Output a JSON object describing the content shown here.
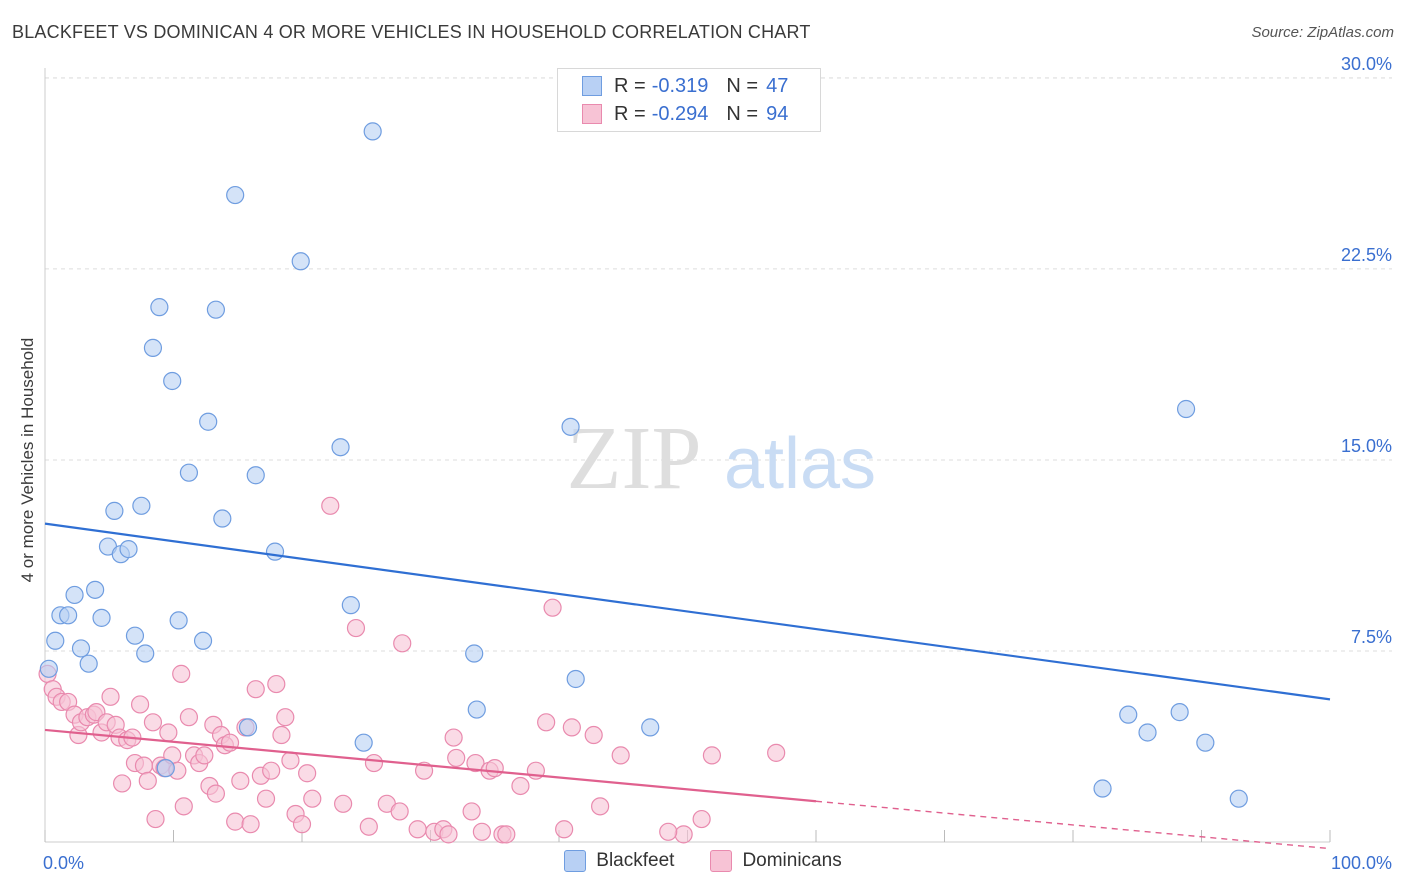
{
  "title": "BLACKFEET VS DOMINICAN 4 OR MORE VEHICLES IN HOUSEHOLD CORRELATION CHART",
  "source": "Source: ZipAtlas.com",
  "watermark": {
    "zip": "ZIP",
    "atlas": "atlas"
  },
  "colors": {
    "blackfeet_fill": "#b8d0f4",
    "blackfeet_stroke": "#6f9de0",
    "blackfeet_line": "#2f6fd3",
    "dominican_fill": "#f7c3d5",
    "dominican_stroke": "#e98aae",
    "dominican_line": "#e0608e",
    "tick_label": "#3a6fd0",
    "grid": "#dddddd"
  },
  "legend_top": [
    {
      "r_label": "R =",
      "r_value": "-0.319",
      "n_label": "N =",
      "n_value": "47"
    },
    {
      "r_label": "R =",
      "r_value": "-0.294",
      "n_label": "N =",
      "n_value": "94"
    }
  ],
  "chart_data": {
    "type": "scatter",
    "title": "BLACKFEET VS DOMINICAN 4 OR MORE VEHICLES IN HOUSEHOLD CORRELATION CHART",
    "xlabel": "",
    "ylabel": "4 or more Vehicles in Household",
    "xlim": [
      0,
      100
    ],
    "ylim": [
      0,
      31
    ],
    "x_tick_labels": [
      "0.0%",
      "100.0%"
    ],
    "y_ticks": [
      7.5,
      15.0,
      22.5,
      30.0
    ],
    "y_tick_labels": [
      "7.5%",
      "15.0%",
      "22.5%",
      "30.0%"
    ],
    "grid": true,
    "legend_position": "top-center",
    "series": [
      {
        "name": "Blackfeet",
        "points": [
          [
            0.3,
            6.8
          ],
          [
            0.8,
            7.9
          ],
          [
            1.2,
            8.9
          ],
          [
            1.8,
            8.9
          ],
          [
            2.3,
            9.7
          ],
          [
            2.8,
            7.6
          ],
          [
            3.4,
            7.0
          ],
          [
            3.9,
            9.9
          ],
          [
            4.4,
            8.8
          ],
          [
            4.9,
            11.6
          ],
          [
            5.4,
            13.0
          ],
          [
            5.9,
            11.3
          ],
          [
            6.5,
            11.5
          ],
          [
            7.0,
            8.1
          ],
          [
            7.5,
            13.2
          ],
          [
            7.8,
            7.4
          ],
          [
            8.4,
            19.4
          ],
          [
            8.9,
            21.0
          ],
          [
            9.4,
            2.9
          ],
          [
            9.9,
            18.1
          ],
          [
            10.4,
            8.7
          ],
          [
            11.2,
            14.5
          ],
          [
            12.3,
            7.9
          ],
          [
            12.7,
            16.5
          ],
          [
            13.3,
            20.9
          ],
          [
            13.8,
            12.7
          ],
          [
            14.8,
            25.4
          ],
          [
            15.8,
            4.5
          ],
          [
            16.4,
            14.4
          ],
          [
            17.9,
            11.4
          ],
          [
            19.9,
            22.8
          ],
          [
            23.0,
            15.5
          ],
          [
            23.8,
            9.3
          ],
          [
            24.8,
            3.9
          ],
          [
            25.5,
            27.9
          ],
          [
            33.6,
            5.2
          ],
          [
            33.4,
            7.4
          ],
          [
            40.9,
            16.3
          ],
          [
            41.3,
            6.4
          ],
          [
            47.1,
            4.5
          ],
          [
            82.3,
            2.1
          ],
          [
            84.3,
            5.0
          ],
          [
            85.8,
            4.3
          ],
          [
            88.8,
            17.0
          ],
          [
            88.3,
            5.1
          ],
          [
            90.3,
            3.9
          ],
          [
            92.9,
            1.7
          ]
        ],
        "trend": {
          "x": [
            0,
            100
          ],
          "y": [
            12.5,
            5.6
          ]
        }
      },
      {
        "name": "Dominicans",
        "points": [
          [
            0.2,
            6.6
          ],
          [
            0.6,
            6.0
          ],
          [
            0.9,
            5.7
          ],
          [
            1.3,
            5.5
          ],
          [
            1.8,
            5.5
          ],
          [
            2.3,
            5.0
          ],
          [
            2.6,
            4.2
          ],
          [
            2.8,
            4.7
          ],
          [
            3.3,
            4.9
          ],
          [
            3.8,
            5.0
          ],
          [
            4.0,
            5.1
          ],
          [
            4.4,
            4.3
          ],
          [
            4.8,
            4.7
          ],
          [
            5.1,
            5.7
          ],
          [
            5.5,
            4.6
          ],
          [
            5.8,
            4.1
          ],
          [
            6.0,
            2.3
          ],
          [
            6.4,
            4.0
          ],
          [
            6.8,
            4.1
          ],
          [
            7.0,
            3.1
          ],
          [
            7.4,
            5.4
          ],
          [
            7.7,
            3.0
          ],
          [
            8.0,
            2.4
          ],
          [
            8.4,
            4.7
          ],
          [
            8.6,
            0.9
          ],
          [
            9.0,
            3.0
          ],
          [
            9.3,
            2.9
          ],
          [
            9.6,
            4.3
          ],
          [
            9.9,
            3.4
          ],
          [
            10.3,
            2.8
          ],
          [
            10.6,
            6.6
          ],
          [
            10.8,
            1.4
          ],
          [
            11.2,
            4.9
          ],
          [
            11.6,
            3.4
          ],
          [
            12.0,
            3.1
          ],
          [
            12.4,
            3.4
          ],
          [
            12.8,
            2.2
          ],
          [
            13.1,
            4.6
          ],
          [
            13.3,
            1.9
          ],
          [
            13.7,
            4.2
          ],
          [
            14.0,
            3.8
          ],
          [
            14.4,
            3.9
          ],
          [
            14.8,
            0.8
          ],
          [
            15.2,
            2.4
          ],
          [
            15.6,
            4.5
          ],
          [
            16.0,
            0.7
          ],
          [
            16.4,
            6.0
          ],
          [
            16.8,
            2.6
          ],
          [
            17.2,
            1.7
          ],
          [
            17.6,
            2.8
          ],
          [
            18.0,
            6.2
          ],
          [
            18.4,
            4.2
          ],
          [
            18.7,
            4.9
          ],
          [
            19.1,
            3.2
          ],
          [
            19.5,
            1.1
          ],
          [
            20.0,
            0.7
          ],
          [
            20.4,
            2.7
          ],
          [
            20.8,
            1.7
          ],
          [
            22.2,
            13.2
          ],
          [
            23.2,
            1.5
          ],
          [
            24.2,
            8.4
          ],
          [
            25.2,
            0.6
          ],
          [
            25.6,
            3.1
          ],
          [
            26.6,
            1.5
          ],
          [
            27.6,
            1.2
          ],
          [
            27.8,
            7.8
          ],
          [
            29.0,
            0.5
          ],
          [
            29.5,
            2.8
          ],
          [
            30.3,
            0.4
          ],
          [
            31.0,
            0.5
          ],
          [
            31.4,
            0.3
          ],
          [
            31.8,
            4.1
          ],
          [
            32.0,
            3.3
          ],
          [
            33.2,
            1.2
          ],
          [
            33.5,
            3.1
          ],
          [
            34.0,
            0.4
          ],
          [
            34.6,
            2.8
          ],
          [
            35.0,
            2.9
          ],
          [
            35.6,
            0.3
          ],
          [
            35.9,
            0.3
          ],
          [
            37.0,
            2.2
          ],
          [
            38.2,
            2.8
          ],
          [
            39.0,
            4.7
          ],
          [
            39.5,
            9.2
          ],
          [
            40.4,
            0.5
          ],
          [
            41.0,
            4.5
          ],
          [
            42.7,
            4.2
          ],
          [
            43.2,
            1.4
          ],
          [
            44.8,
            3.4
          ],
          [
            49.7,
            0.3
          ],
          [
            51.1,
            0.9
          ],
          [
            51.9,
            3.4
          ],
          [
            56.9,
            3.5
          ],
          [
            48.5,
            0.4
          ]
        ],
        "trend": {
          "x": [
            0,
            60
          ],
          "y": [
            4.4,
            1.6
          ]
        },
        "trend_extension": {
          "x": [
            60,
            100
          ],
          "y": [
            1.6,
            -0.26
          ]
        }
      }
    ]
  }
}
